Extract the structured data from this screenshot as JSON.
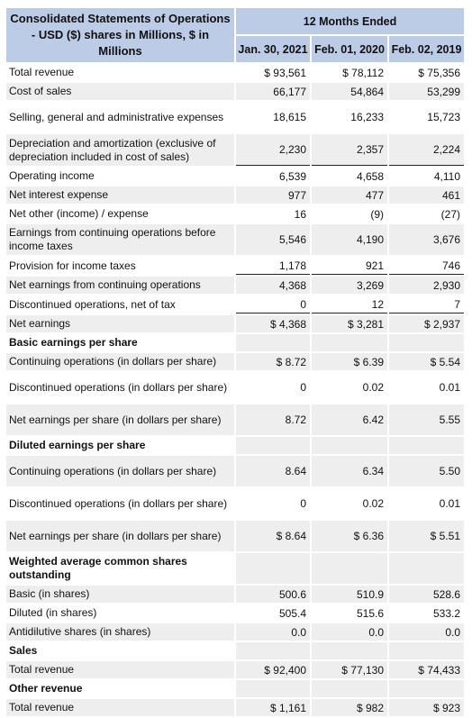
{
  "table": {
    "title": "Consolidated Statements of Operations - USD ($) shares in Millions, $ in Millions",
    "period_header": "12 Months Ended",
    "columns": [
      "Jan. 30, 2021",
      "Feb. 01, 2020",
      "Feb. 02, 2019"
    ],
    "rows": [
      {
        "label": "Total revenue",
        "values": [
          "$ 93,561",
          "$ 78,112",
          "$ 75,356"
        ]
      },
      {
        "label": "Cost of sales",
        "values": [
          "66,177",
          "54,864",
          "53,299"
        ]
      },
      {
        "label": "Selling, general and administrative expenses",
        "values": [
          "18,615",
          "16,233",
          "15,723"
        ]
      },
      {
        "label": "Depreciation and amortization (exclusive of depreciation included in cost of sales)",
        "values": [
          "2,230",
          "2,357",
          "2,224"
        ]
      },
      {
        "label": "Operating income",
        "values": [
          "6,539",
          "4,658",
          "4,110"
        ]
      },
      {
        "label": "Net interest expense",
        "values": [
          "977",
          "477",
          "461"
        ]
      },
      {
        "label": "Net other (income) / expense",
        "values": [
          "16",
          "(9)",
          "(27)"
        ]
      },
      {
        "label": "Earnings from continuing operations before income taxes",
        "values": [
          "5,546",
          "4,190",
          "3,676"
        ]
      },
      {
        "label": "Provision for income taxes",
        "values": [
          "1,178",
          "921",
          "746"
        ]
      },
      {
        "label": "Net earnings from continuing operations",
        "values": [
          "4,368",
          "3,269",
          "2,930"
        ]
      },
      {
        "label": "Discontinued operations, net of tax",
        "values": [
          "0",
          "12",
          "7"
        ]
      },
      {
        "label": "Net earnings",
        "values": [
          "$ 4,368",
          "$ 3,281",
          "$ 2,937"
        ]
      },
      {
        "label": "Basic earnings per share",
        "values": [
          "",
          "",
          ""
        ]
      },
      {
        "label": "Continuing operations (in dollars per share)",
        "values": [
          "$ 8.72",
          "$ 6.39",
          "$ 5.54"
        ]
      },
      {
        "label": "Discontinued operations (in dollars per share)",
        "values": [
          "0",
          "0.02",
          "0.01"
        ]
      },
      {
        "label": "Net earnings per share (in dollars per share)",
        "values": [
          "8.72",
          "6.42",
          "5.55"
        ]
      },
      {
        "label": "Diluted earnings per share",
        "values": [
          "",
          "",
          ""
        ]
      },
      {
        "label": "Continuing operations (in dollars per share)",
        "values": [
          "8.64",
          "6.34",
          "5.50"
        ]
      },
      {
        "label": "Discontinued operations (in dollars per share)",
        "values": [
          "0",
          "0.02",
          "0.01"
        ]
      },
      {
        "label": "Net earnings per share (in dollars per share)",
        "values": [
          "$ 8.64",
          "$ 6.36",
          "$ 5.51"
        ]
      },
      {
        "label": "Weighted average common shares outstanding",
        "values": [
          "",
          "",
          ""
        ]
      },
      {
        "label": "Basic (in shares)",
        "values": [
          "500.6",
          "510.9",
          "528.6"
        ]
      },
      {
        "label": "Diluted (in shares)",
        "values": [
          "505.4",
          "515.6",
          "533.2"
        ]
      },
      {
        "label": "Antidilutive shares (in shares)",
        "values": [
          "0.0",
          "0.0",
          "0.0"
        ]
      },
      {
        "label": "Sales",
        "values": [
          "",
          "",
          ""
        ]
      },
      {
        "label": "Total revenue",
        "values": [
          "$ 92,400",
          "$ 77,130",
          "$ 74,433"
        ]
      },
      {
        "label": "Other revenue",
        "values": [
          "",
          "",
          ""
        ]
      },
      {
        "label": "Total revenue",
        "values": [
          "$ 1,161",
          "$ 982",
          "$ 923"
        ]
      }
    ]
  }
}
